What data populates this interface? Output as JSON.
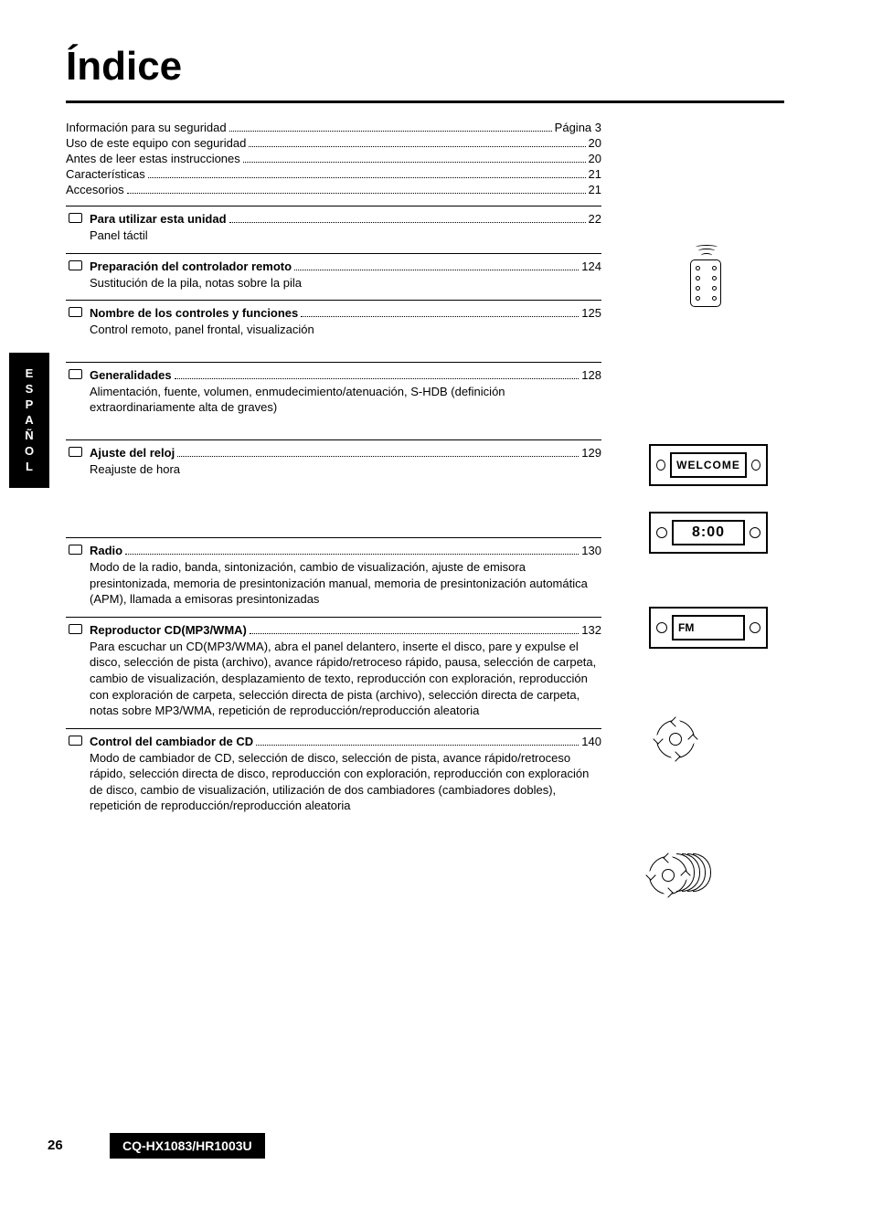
{
  "title": "Índice",
  "side_tab": "ESPAÑOL",
  "page_number": "26",
  "model": "CQ-HX1083/HR1003U",
  "intro_lines": [
    {
      "label": "Información para su seguridad",
      "page": "Página 3"
    },
    {
      "label": "Uso de este equipo con seguridad",
      "page": "20"
    },
    {
      "label": "Antes de leer estas instrucciones",
      "page": "20"
    },
    {
      "label": "Características",
      "page": "21"
    },
    {
      "label": "Accesorios",
      "page": "21"
    }
  ],
  "sections": [
    {
      "label": "Para utilizar esta unidad",
      "page": "22",
      "sub": "Panel táctil",
      "gap_after": "none"
    },
    {
      "label": "Preparación del controlador remoto",
      "page": "124",
      "sub": "Sustitución de la pila, notas sobre la pila",
      "gap_after": "none"
    },
    {
      "label": "Nombre de los controles y funciones",
      "page": "125",
      "sub": "Control remoto, panel frontal, visualización",
      "gap_after": "small"
    },
    {
      "label": "Generalidades",
      "page": "128",
      "sub": "Alimentación, fuente, volumen, enmudecimiento/atenuación, S-HDB (definición extraordinariamente alta de graves)",
      "gap_after": "small"
    },
    {
      "label": "Ajuste del reloj",
      "page": "129",
      "sub": "Reajuste de hora",
      "gap_after": "large"
    },
    {
      "label": "Radio",
      "page": "130",
      "sub": "Modo de la radio, banda, sintonización, cambio de visualización, ajuste de emisora presintonizada, memoria de presintonización manual, memoria de presintonización automática (APM), llamada a emisoras presintonizadas",
      "gap_after": "none"
    },
    {
      "label": "Reproductor CD(MP3/WMA)",
      "page": "132",
      "sub": "Para escuchar un CD(MP3/WMA), abra el panel delantero, inserte el disco, pare y expulse el disco, selección de pista (archivo), avance rápido/retroceso rápido, pausa, selección de carpeta, cambio de visualización, desplazamiento de texto, reproducción con exploración, reproducción con exploración de carpeta, selección directa de pista (archivo), selección directa de carpeta, notas sobre MP3/WMA, repetición de reproducción/reproducción aleatoria",
      "gap_after": "none"
    },
    {
      "label": "Control del cambiador de CD",
      "page": "140",
      "sub": "Modo de cambiador de CD, selección de disco, selección de pista, avance rápido/retroceso rápido, selección directa de disco, reproducción con exploración, reproducción con exploración de disco, cambio de visualización, utilización de dos cambiadores (cambiadores dobles), repetición de reproducción/reproducción aleatoria",
      "gap_after": "none"
    }
  ],
  "displays": {
    "welcome": "WELCOME",
    "clock": "8:00",
    "radio": "FM"
  }
}
